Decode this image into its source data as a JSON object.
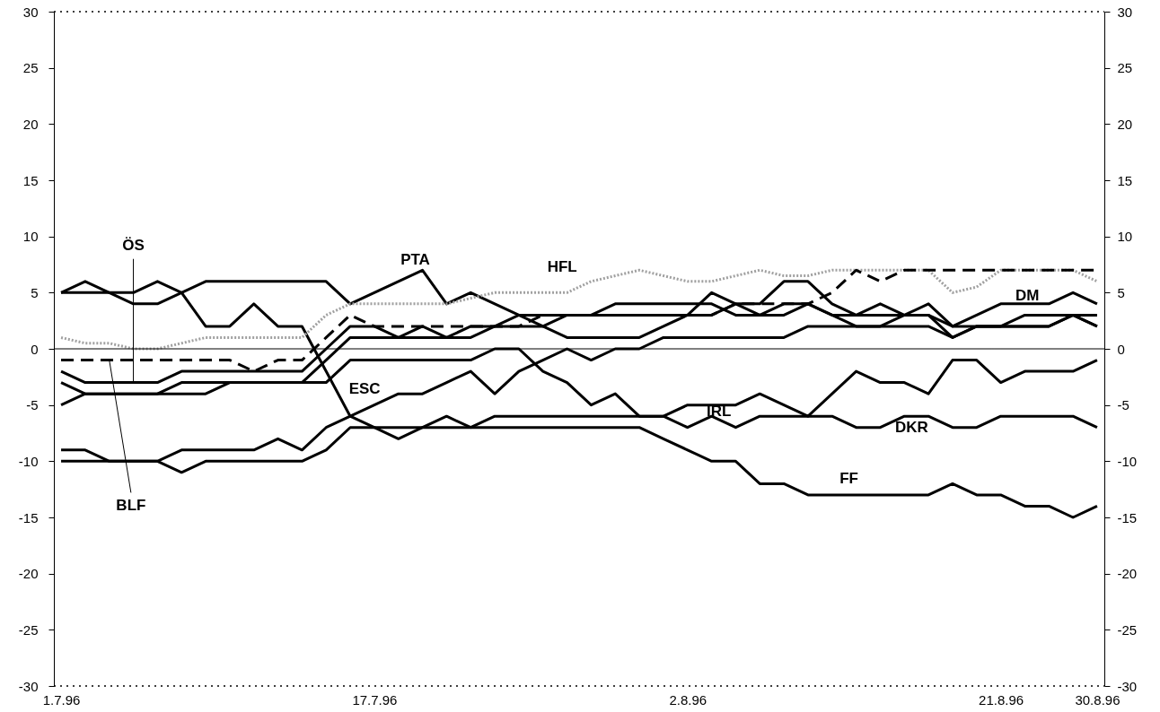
{
  "chart_data": {
    "type": "line",
    "categories": [
      "1.7.96",
      null,
      null,
      null,
      null,
      null,
      null,
      null,
      null,
      null,
      null,
      null,
      null,
      "17.7.96",
      null,
      null,
      null,
      null,
      null,
      null,
      null,
      null,
      null,
      null,
      null,
      null,
      "2.8.96",
      null,
      null,
      null,
      null,
      null,
      null,
      null,
      null,
      null,
      null,
      null,
      null,
      "21.8.96",
      null,
      null,
      null,
      "30.8.96"
    ],
    "ylim": [
      -30,
      30
    ],
    "yticks": [
      -30,
      -25,
      -20,
      -15,
      -10,
      -5,
      0,
      5,
      10,
      15,
      20,
      25,
      30
    ],
    "y2lim": [
      -30,
      30
    ],
    "y2ticks": [
      -30,
      -25,
      -20,
      -15,
      -10,
      -5,
      0,
      5,
      10,
      15,
      20,
      25,
      30
    ],
    "series": [
      {
        "name": "PTA",
        "color": "#000000",
        "values": [
          5,
          5,
          5,
          4,
          4,
          5,
          6,
          6,
          6,
          6,
          6,
          6,
          4,
          5,
          6,
          7,
          4,
          5,
          4,
          3,
          2,
          1,
          1,
          1,
          1,
          2,
          3,
          5,
          4,
          3,
          4,
          4,
          3,
          2,
          2,
          3,
          3,
          2,
          2,
          2,
          3,
          3,
          3,
          2
        ]
      },
      {
        "name": "DKR",
        "color": "#000000",
        "values": [
          5,
          6,
          5,
          5,
          6,
          5,
          2,
          2,
          4,
          2,
          2,
          -2,
          -6,
          -7,
          -8,
          -7,
          -6,
          -7,
          -6,
          -6,
          -6,
          -6,
          -6,
          -6,
          -6,
          -6,
          -7,
          -6,
          -7,
          -6,
          -6,
          -6,
          -6,
          -7,
          -7,
          -6,
          -6,
          -7,
          -7,
          -6,
          -6,
          -6,
          -6,
          -7
        ]
      },
      {
        "name": "HFL",
        "color": "#a0a0a0",
        "line_style": "dotted",
        "values": [
          1,
          0.5,
          0.5,
          0,
          0,
          0.5,
          1,
          1,
          1,
          1,
          1,
          3,
          4,
          4,
          4,
          4,
          4,
          4.5,
          5,
          5,
          5,
          5,
          6,
          6.5,
          7,
          6.5,
          6,
          6,
          6.5,
          7,
          6.5,
          6.5,
          7,
          7,
          7,
          7,
          7,
          5,
          5.5,
          7,
          7,
          7,
          7,
          6
        ]
      },
      {
        "name": "BLF",
        "color": "#000000",
        "line_style": "dashed",
        "values": [
          -1,
          -1,
          -1,
          -1,
          -1,
          -1,
          -1,
          -1,
          -2,
          -1,
          -1,
          1,
          3,
          2,
          2,
          2,
          2,
          2,
          2,
          2,
          3,
          3,
          3,
          3,
          3,
          3,
          3,
          3,
          4,
          4,
          4,
          4,
          5,
          7,
          6,
          7,
          7,
          7,
          7,
          7,
          7,
          7,
          7,
          7
        ]
      },
      {
        "name": "ÖS",
        "color": "#000000",
        "values": [
          -2,
          -3,
          -3,
          -3,
          -3,
          -2,
          -2,
          -2,
          -2,
          -2,
          -2,
          0,
          2,
          2,
          1,
          2,
          1,
          2,
          2,
          3,
          3,
          3,
          3,
          4,
          4,
          4,
          4,
          4,
          3,
          3,
          3,
          4,
          3,
          3,
          3,
          3,
          3,
          1,
          2,
          2,
          2,
          2,
          3,
          3
        ]
      },
      {
        "name": "DM",
        "color": "#000000",
        "values": [
          -3,
          -4,
          -4,
          -4,
          -4,
          -3,
          -3,
          -3,
          -3,
          -3,
          -3,
          -1,
          1,
          1,
          1,
          1,
          1,
          1,
          2,
          2,
          2,
          3,
          3,
          3,
          3,
          3,
          3,
          3,
          4,
          4,
          6,
          6,
          4,
          3,
          4,
          3,
          4,
          2,
          3,
          4,
          4,
          4,
          5,
          4
        ]
      },
      {
        "name": "IRL",
        "color": "#000000",
        "values": [
          -5,
          -4,
          -4,
          -4,
          -4,
          -4,
          -4,
          -3,
          -3,
          -3,
          -3,
          -3,
          -1,
          -1,
          -1,
          -1,
          -1,
          -1,
          0,
          0,
          -2,
          -3,
          -5,
          -4,
          -6,
          -6,
          -5,
          -5,
          -5,
          -4,
          -5,
          -6,
          -4,
          -2,
          -3,
          -3,
          -4,
          -1,
          -1,
          -3,
          -2,
          -2,
          -2,
          -1
        ]
      },
      {
        "name": "ESC",
        "color": "#000000",
        "values": [
          -9,
          -9,
          -10,
          -10,
          -10,
          -9,
          -9,
          -9,
          -9,
          -8,
          -9,
          -7,
          -6,
          -5,
          -4,
          -4,
          -3,
          -2,
          -4,
          -2,
          -1,
          0,
          -1,
          0,
          0,
          1,
          1,
          1,
          1,
          1,
          1,
          2,
          2,
          2,
          2,
          2,
          2,
          1,
          2,
          2,
          2,
          2,
          3,
          2
        ]
      },
      {
        "name": "FF",
        "color": "#000000",
        "values": [
          -10,
          -10,
          -10,
          -10,
          -10,
          -11,
          -10,
          -10,
          -10,
          -10,
          -10,
          -9,
          -7,
          -7,
          -7,
          -7,
          -7,
          -7,
          -7,
          -7,
          -7,
          -7,
          -7,
          -7,
          -7,
          -8,
          -9,
          -10,
          -10,
          -12,
          -12,
          -13,
          -13,
          -13,
          -13,
          -13,
          -13,
          -12,
          -13,
          -13,
          -14,
          -14,
          -15,
          -14
        ]
      }
    ],
    "ref_lines": [
      {
        "axis": "y",
        "value": 0,
        "color": "#000000"
      }
    ]
  }
}
